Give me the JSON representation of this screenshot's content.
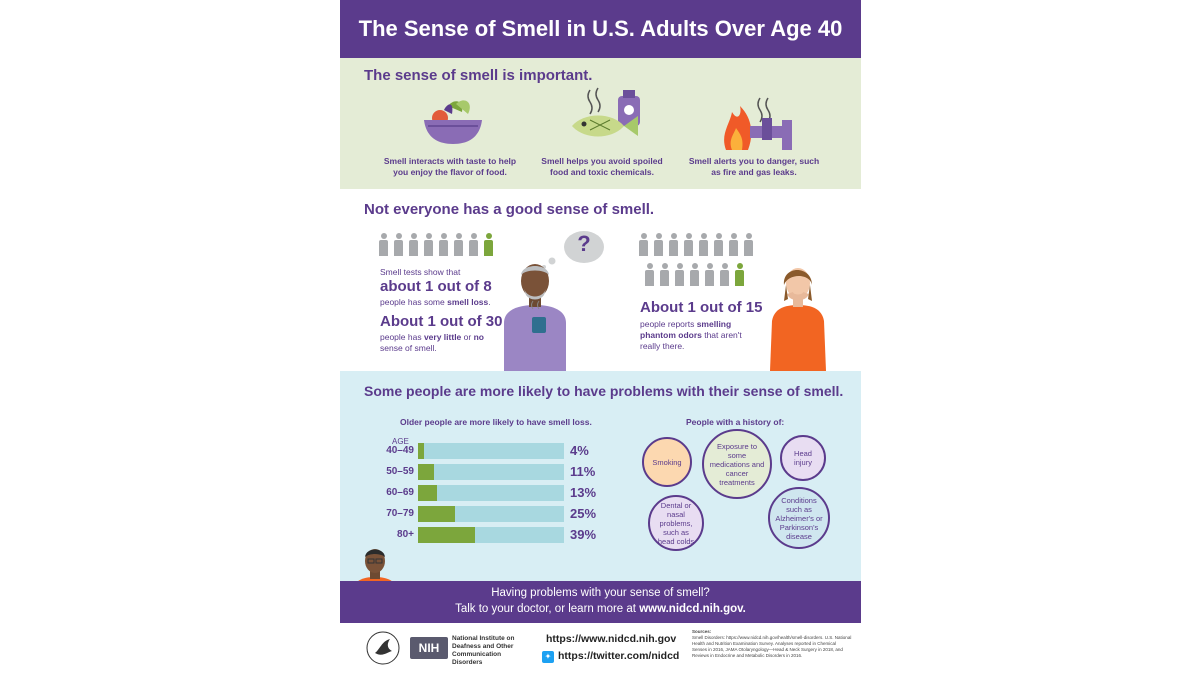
{
  "title": "The Sense of Smell in U.S. Adults Over Age 40",
  "section1": {
    "heading": "The sense of smell is important.",
    "items": [
      {
        "icon": "food-bowl-icon",
        "caption": "Smell interacts with taste to help you enjoy the flavor of food."
      },
      {
        "icon": "spoiled-fish-toxic-icon",
        "caption": "Smell helps you avoid spoiled food and toxic chemicals."
      },
      {
        "icon": "fire-gas-icon",
        "caption": "Smell alerts you to danger, such as fire and gas leaks."
      }
    ]
  },
  "section2": {
    "heading": "Not everyone has a good sense of smell.",
    "left_intro": "Smell tests show that",
    "left_big1": "about 1 out of 8",
    "left_after1_pre": "people has some ",
    "left_after1_bold": "smell loss",
    "left_after1_post": ".",
    "left_big2": "About 1 out of 30",
    "left_after2_pre": "people has ",
    "left_after2_bold": "very little",
    "left_after2_mid": " or ",
    "left_after2_bold2": "no",
    "left_after2_post": " sense of smell.",
    "question": "?",
    "right_big": "About 1 out of 15",
    "right_after_pre": "people reports ",
    "right_after_bold": "smelling phantom odors",
    "right_after_post": " that aren't really there.",
    "colors": {
      "gray": "#a7a9ac",
      "green": "#7ca63c"
    }
  },
  "section3": {
    "heading": "Some people are more likely to have problems with their sense of smell.",
    "chart_title": "Older people are more likely to have smell loss.",
    "age_label": "AGE",
    "chart_data": {
      "type": "bar",
      "categories": [
        "40–49",
        "50–59",
        "60–69",
        "70–79",
        "80+"
      ],
      "values": [
        4,
        11,
        13,
        25,
        39
      ],
      "labels": [
        "4%",
        "11%",
        "13%",
        "25%",
        "39%"
      ],
      "title": "Older people are more likely to have smell loss.",
      "xlabel": "AGE",
      "ylim": [
        0,
        100
      ]
    },
    "history_title": "People with a history of:",
    "history": [
      "Smoking",
      "Exposure to some medications and cancer treatments",
      "Head injury",
      "Dental or nasal problems, such as head colds",
      "Conditions such as Alzheimer's or Parkinson's disease"
    ]
  },
  "cta": {
    "line1": "Having problems with your sense of smell?",
    "line2_pre": "Talk to your doctor, or learn more at ",
    "line2_link": "www.nidcd.nih.gov."
  },
  "footer": {
    "nih_badge": "NIH",
    "institute": "National Institute on Deafness and Other Communication Disorders",
    "url": "https://www.nidcd.nih.gov",
    "twitter": "https://twitter.com/nidcd",
    "sources_label": "Sources:",
    "sources_text": "Smell Disorders: https://www.nidcd.nih.gov/health/smell-disorders. U.S. National Health and Nutrition Examination Survey. Analyses reported in Chemical Senses in 2016, JAMA Otolaryngology—Head & Neck Surgery in 2018, and Reviews in Endocrine and Metabolic Disorders in 2016."
  }
}
